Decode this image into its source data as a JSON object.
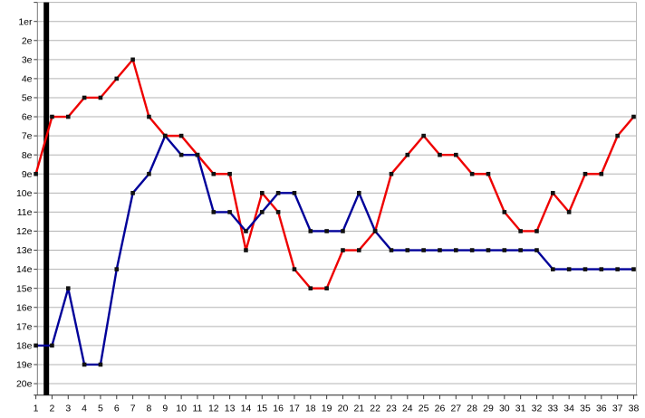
{
  "chart_data": {
    "type": "line",
    "title": "",
    "xlabel": "",
    "ylabel": "",
    "x": [
      1,
      2,
      3,
      4,
      5,
      6,
      7,
      8,
      9,
      10,
      11,
      12,
      13,
      14,
      15,
      16,
      17,
      18,
      19,
      20,
      21,
      22,
      23,
      24,
      25,
      26,
      27,
      28,
      29,
      30,
      31,
      32,
      33,
      34,
      35,
      36,
      37,
      38
    ],
    "x_tick_labels": [
      "1",
      "2",
      "3",
      "4",
      "5",
      "6",
      "7",
      "8",
      "9",
      "10",
      "11",
      "12",
      "13",
      "14",
      "15",
      "16",
      "17",
      "18",
      "19",
      "20",
      "21",
      "22",
      "23",
      "24",
      "25",
      "26",
      "27",
      "28",
      "29",
      "30",
      "31",
      "32",
      "33",
      "34",
      "35",
      "36",
      "37",
      "38"
    ],
    "y_tick_labels": [
      "1er",
      "2e",
      "3e",
      "4e",
      "5e",
      "6e",
      "7e",
      "8e",
      "9e",
      "10e",
      "11e",
      "12e",
      "13e",
      "14e",
      "15e",
      "16e",
      "17e",
      "18e",
      "19e",
      "20e"
    ],
    "y_axis": {
      "inverted": true,
      "top_rank": 1,
      "bottom_rank": 20
    },
    "grid": "horizontal-only",
    "legend": "none",
    "series": [
      {
        "name": "red-series",
        "color": "#ee0000",
        "values": [
          9,
          6,
          6,
          5,
          5,
          4,
          3,
          6,
          7,
          7,
          8,
          9,
          9,
          13,
          10,
          11,
          14,
          15,
          15,
          13,
          13,
          12,
          9,
          8,
          7,
          8,
          8,
          9,
          9,
          11,
          12,
          12,
          10,
          11,
          9,
          9,
          7,
          6
        ]
      },
      {
        "name": "blue-series",
        "color": "#000099",
        "values": [
          18,
          18,
          15,
          19,
          19,
          14,
          10,
          9,
          7,
          8,
          8,
          11,
          11,
          12,
          11,
          10,
          10,
          12,
          12,
          12,
          10,
          12,
          13,
          13,
          13,
          13,
          13,
          13,
          13,
          13,
          13,
          13,
          14,
          14,
          14,
          14,
          14,
          14
        ]
      }
    ],
    "marker": {
      "shape": "square",
      "color": "#111111",
      "size": 4.6
    },
    "vertical_marker_bar": {
      "x_position": 1.65,
      "color": "#000000",
      "width": 6
    },
    "colors": {
      "gridline": "#b3b3b3",
      "axis_bottom": "#3c3c3c",
      "axis_left": "#777777",
      "border_right": "#b9b9b9",
      "background": "#ffffff",
      "tick": "#3c3c3c",
      "label_text": "#000000"
    }
  }
}
